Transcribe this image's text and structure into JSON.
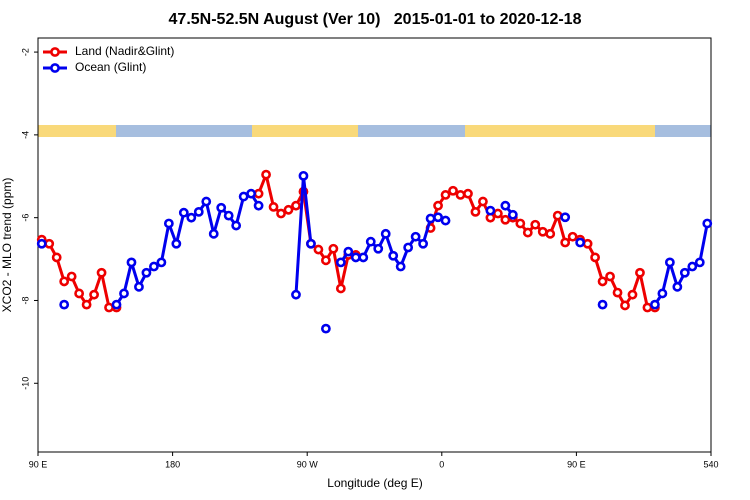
{
  "chart_data": {
    "type": "line",
    "title": "47.5N-52.5N August (Ver 10)   2015-01-01 to 2020-12-18",
    "xlabel": "Longitude (deg E)",
    "ylabel": "XCO2 - MLO trend (ppm)",
    "x": [
      92.5,
      97.5,
      102.5,
      107.5,
      112.5,
      117.5,
      122.5,
      127.5,
      132.5,
      137.5,
      142.5,
      147.5,
      152.5,
      157.5,
      162.5,
      167.5,
      172.5,
      177.5,
      182.5,
      187.5,
      192.5,
      197.5,
      202.5,
      207.5,
      212.5,
      217.5,
      222.5,
      227.5,
      232.5,
      237.5,
      242.5,
      247.5,
      252.5,
      257.5,
      262.5,
      267.5,
      272.5,
      277.5,
      282.5,
      287.5,
      292.5,
      297.5,
      302.5,
      307.5,
      312.5,
      317.5,
      322.5,
      327.5,
      332.5,
      337.5,
      342.5,
      347.5,
      352.5,
      357.5,
      362.5,
      367.5,
      372.5,
      377.5,
      382.5,
      387.5,
      392.5,
      397.5,
      402.5,
      407.5,
      412.5,
      417.5,
      422.5,
      427.5,
      432.5,
      437.5,
      442.5,
      447.5,
      452.5,
      457.5,
      462.5,
      467.5,
      472.5,
      477.5,
      482.5,
      487.5,
      492.5,
      497.5,
      502.5,
      507.5,
      512.5,
      517.5,
      522.5,
      527.5,
      532.5,
      537.5
    ],
    "series": [
      {
        "name": "Land (Nadir&Glint)",
        "color": "#ee0000",
        "values": [
          -6.53,
          -6.63,
          -6.96,
          -7.54,
          -7.42,
          -7.83,
          -8.1,
          -7.86,
          -7.33,
          -8.17,
          -8.17,
          null,
          null,
          null,
          null,
          null,
          null,
          null,
          null,
          null,
          null,
          null,
          null,
          null,
          null,
          null,
          null,
          null,
          null,
          -5.42,
          -4.96,
          -5.74,
          -5.9,
          -5.81,
          -5.71,
          -5.37,
          -6.63,
          -6.77,
          -7.03,
          -6.75,
          -7.71,
          -6.9,
          -6.9,
          null,
          null,
          null,
          null,
          null,
          null,
          null,
          null,
          null,
          -6.25,
          -5.71,
          -5.45,
          -5.35,
          -5.45,
          -5.42,
          -5.86,
          -5.61,
          -6.0,
          -5.9,
          -6.05,
          -6.0,
          -6.14,
          -6.36,
          -6.17,
          -6.34,
          -6.39,
          -5.95,
          -6.6,
          -6.46,
          -6.53,
          -6.63,
          -6.96,
          -7.54,
          -7.42,
          -7.81,
          -8.12,
          -7.86,
          -7.33,
          -8.17,
          -8.17,
          null,
          null,
          null,
          null,
          null,
          null,
          null
        ]
      },
      {
        "name": "Ocean (Glint)",
        "color": "#0000ee",
        "values": [
          -6.63,
          null,
          null,
          -8.1,
          null,
          null,
          null,
          null,
          null,
          null,
          -8.1,
          -7.83,
          -7.08,
          -7.67,
          -7.33,
          -7.18,
          -7.08,
          -6.14,
          -6.63,
          -5.88,
          -6.0,
          -5.86,
          -5.61,
          -6.39,
          -5.76,
          -5.95,
          -6.19,
          -5.49,
          -5.42,
          -5.71,
          null,
          null,
          null,
          null,
          -7.86,
          -4.99,
          -6.63,
          null,
          -8.68,
          null,
          -7.08,
          -6.82,
          -6.96,
          -6.96,
          -6.58,
          -6.75,
          -6.39,
          -6.92,
          -7.18,
          -6.72,
          -6.46,
          -6.63,
          -6.02,
          -5.99,
          -6.07,
          null,
          null,
          null,
          null,
          null,
          -5.83,
          null,
          -5.71,
          -5.93,
          null,
          null,
          null,
          null,
          null,
          null,
          -5.99,
          null,
          -6.6,
          null,
          null,
          -8.1,
          null,
          null,
          null,
          null,
          null,
          null,
          -8.1,
          -7.83,
          -7.08,
          -7.67,
          -7.33,
          -7.18,
          -7.08,
          -6.14
        ]
      }
    ],
    "xlim": [
      90,
      540
    ],
    "ylim": [
      -11.66,
      -1.66
    ],
    "xticks": [
      {
        "value": 90,
        "label": "90 E"
      },
      180,
      {
        "value": 270,
        "label": "90 W"
      },
      {
        "value": 360,
        "label": "0"
      },
      {
        "value": 450,
        "label": "90 E"
      },
      540
    ],
    "yticks": [
      -2,
      -4,
      -6,
      -8,
      -10
    ],
    "legend": "top-left"
  }
}
